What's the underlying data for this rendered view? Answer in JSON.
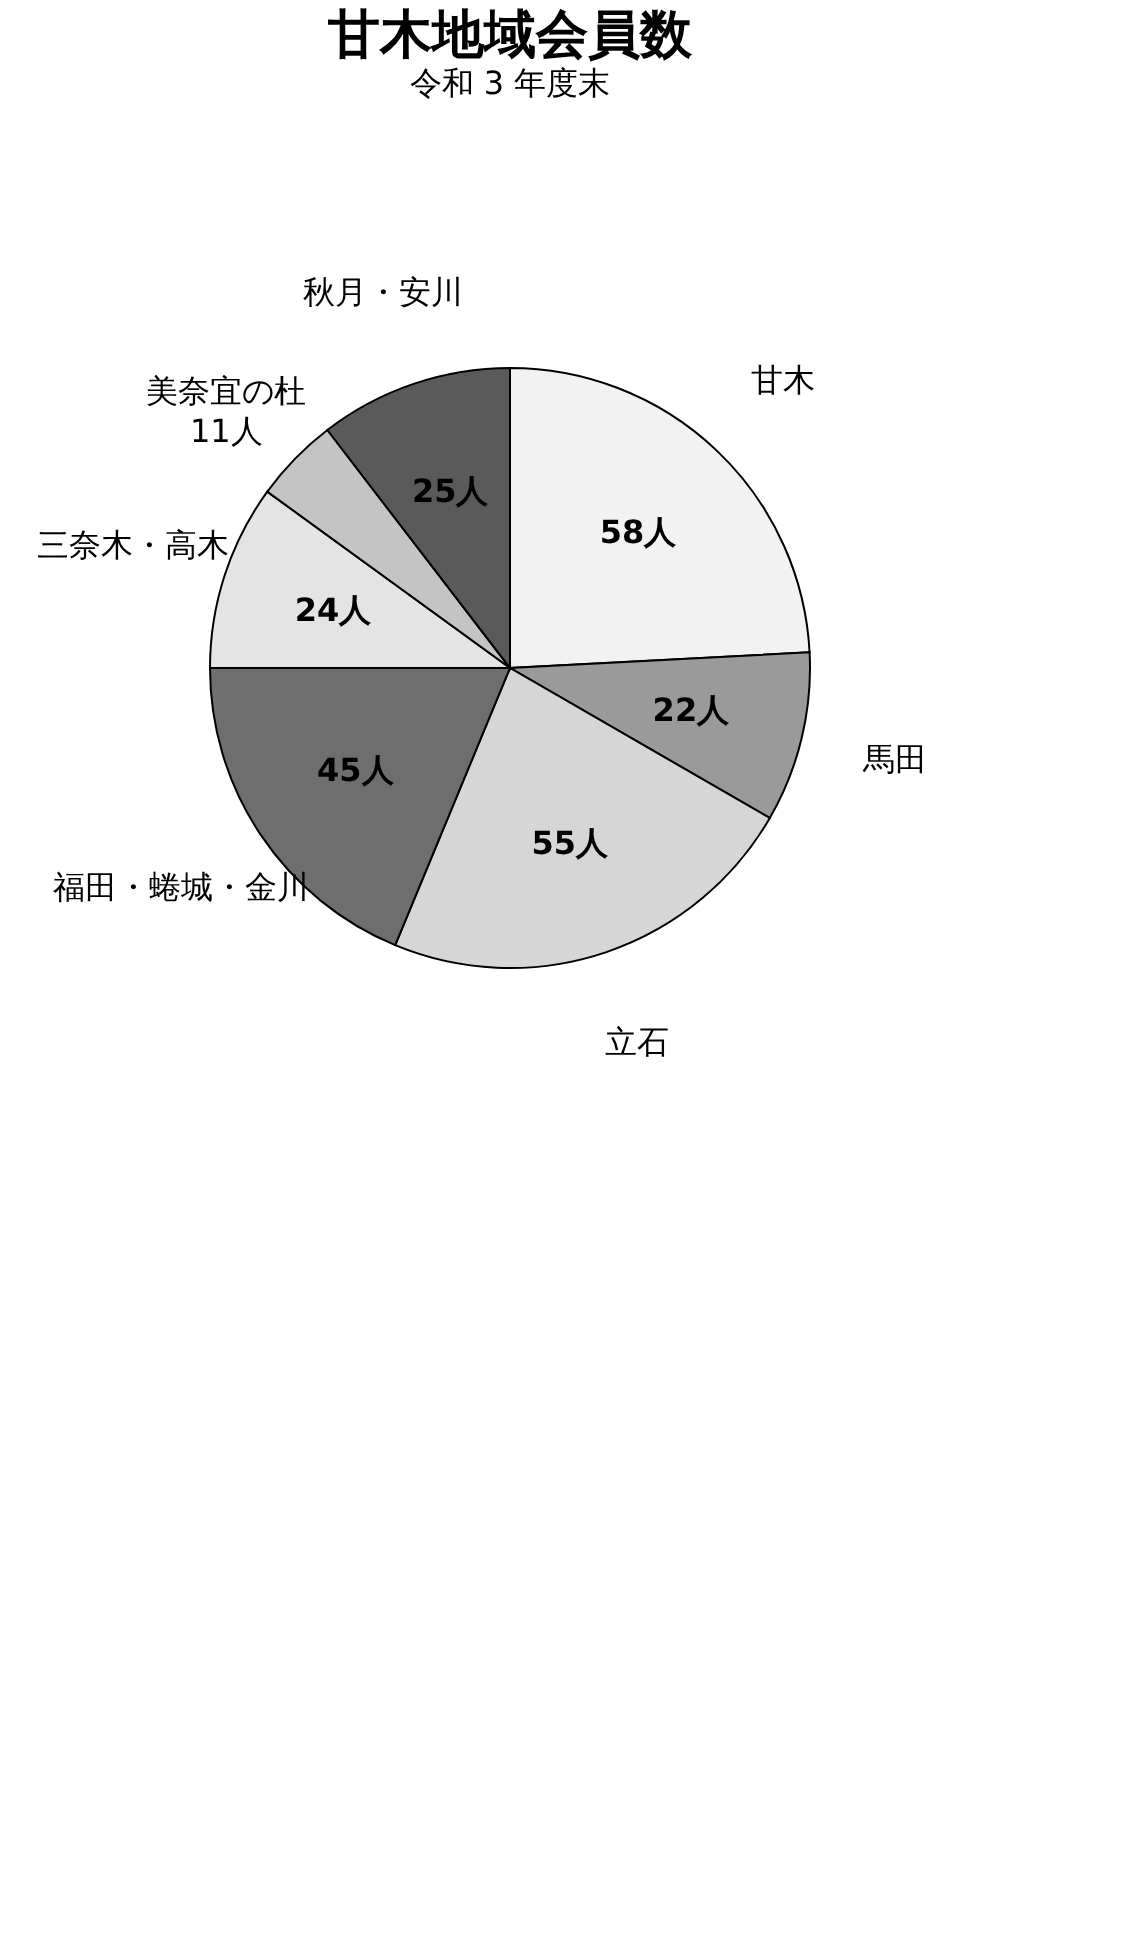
{
  "chart_data": {
    "type": "pie",
    "title": "甘木地域会員数",
    "subtitle": "令和 3 年度末",
    "categories": [
      "甘木",
      "馬田",
      "立石",
      "福田・蜷城・金川",
      "三奈木・高木",
      "美奈宜の杜",
      "秋月・安川"
    ],
    "values": [
      58,
      22,
      55,
      45,
      24,
      11,
      25
    ],
    "value_labels": [
      "58人",
      "22人",
      "55人",
      "45人",
      "24人",
      "11人",
      "25人"
    ],
    "colors": [
      "#f2f2f2",
      "#9a9a9a",
      "#d6d6d6",
      "#6e6e6e",
      "#e4e4e4",
      "#c4c4c4",
      "#5a5a5a"
    ],
    "legend": false
  }
}
